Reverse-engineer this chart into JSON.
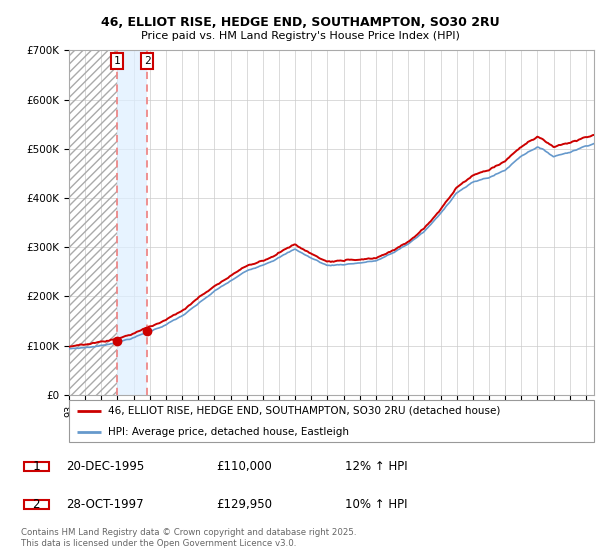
{
  "title_line1": "46, ELLIOT RISE, HEDGE END, SOUTHAMPTON, SO30 2RU",
  "title_line2": "Price paid vs. HM Land Registry's House Price Index (HPI)",
  "legend_line1": "46, ELLIOT RISE, HEDGE END, SOUTHAMPTON, SO30 2RU (detached house)",
  "legend_line2": "HPI: Average price, detached house, Eastleigh",
  "footer": "Contains HM Land Registry data © Crown copyright and database right 2025.\nThis data is licensed under the Open Government Licence v3.0.",
  "sale1_date": "20-DEC-1995",
  "sale1_price": "£110,000",
  "sale1_hpi": "12% ↑ HPI",
  "sale1_year": 1995.97,
  "sale1_value": 110000,
  "sale2_date": "28-OCT-1997",
  "sale2_price": "£129,950",
  "sale2_hpi": "10% ↑ HPI",
  "sale2_year": 1997.83,
  "sale2_value": 129950,
  "red_line_color": "#cc0000",
  "blue_line_color": "#6699cc",
  "blue_fill_color": "#ddeeff",
  "marker_color": "#cc0000",
  "vline_color": "#ee8888",
  "ylim_min": 0,
  "ylim_max": 700000,
  "xlim_min": 1993.0,
  "xlim_max": 2025.5
}
